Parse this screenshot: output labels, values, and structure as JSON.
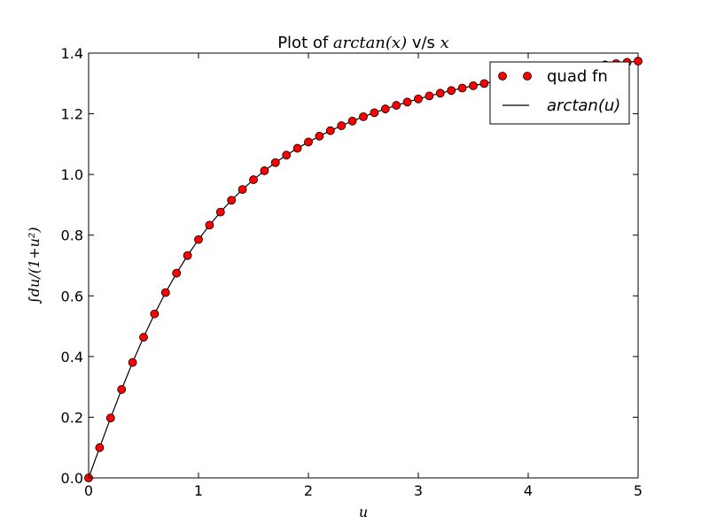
{
  "chart_data": {
    "type": "scatter",
    "title_prefix": "Plot of ",
    "title_math_1": "arctan(x)",
    "title_mid": " v/s ",
    "title_math_2": "x",
    "xlabel": "u",
    "ylabel": "∫du/(1+u²)",
    "xlim": [
      0,
      5
    ],
    "ylim": [
      0.0,
      1.4
    ],
    "x_ticks": [
      "0",
      "1",
      "2",
      "3",
      "4",
      "5"
    ],
    "y_ticks": [
      "0.0",
      "0.2",
      "0.4",
      "0.6",
      "0.8",
      "1.0",
      "1.2",
      "1.4"
    ],
    "grid": false,
    "legend_position": "top-right",
    "series": [
      {
        "name": "quad fn",
        "style": "markers",
        "color": "#ff0000",
        "edge_color": "#000000",
        "x": [
          0.0,
          0.1,
          0.2,
          0.3,
          0.4,
          0.5,
          0.6,
          0.7,
          0.8,
          0.9,
          1.0,
          1.1,
          1.2,
          1.3,
          1.4,
          1.5,
          1.6,
          1.7,
          1.8,
          1.9,
          2.0,
          2.1,
          2.2,
          2.3,
          2.4,
          2.5,
          2.6,
          2.7,
          2.8,
          2.9,
          3.0,
          3.1,
          3.2,
          3.3,
          3.4,
          3.5,
          3.6,
          3.7,
          3.8,
          3.9,
          4.0,
          4.1,
          4.2,
          4.3,
          4.4,
          4.5,
          4.6,
          4.7,
          4.8,
          4.9,
          5.0
        ],
        "y": [
          0.0,
          0.0997,
          0.1974,
          0.2915,
          0.3805,
          0.4636,
          0.5404,
          0.6107,
          0.6747,
          0.7328,
          0.7854,
          0.833,
          0.8761,
          0.9151,
          0.9505,
          0.9828,
          1.0122,
          1.0391,
          1.0637,
          1.0863,
          1.1071,
          1.1264,
          1.1442,
          1.1607,
          1.176,
          1.1903,
          1.2036,
          1.2161,
          1.2278,
          1.2387,
          1.249,
          1.2588,
          1.2679,
          1.2766,
          1.2847,
          1.2925,
          1.2998,
          1.3068,
          1.3134,
          1.3197,
          1.3258,
          1.3315,
          1.337,
          1.3423,
          1.3473,
          1.3521,
          1.3567,
          1.3612,
          1.3654,
          1.3695,
          1.3734
        ]
      },
      {
        "name": "arctan(u)",
        "style": "line",
        "color": "#000000",
        "x": [
          0.0,
          0.1,
          0.2,
          0.3,
          0.4,
          0.5,
          0.6,
          0.7,
          0.8,
          0.9,
          1.0,
          1.1,
          1.2,
          1.3,
          1.4,
          1.5,
          1.6,
          1.7,
          1.8,
          1.9,
          2.0,
          2.1,
          2.2,
          2.3,
          2.4,
          2.5,
          2.6,
          2.7,
          2.8,
          2.9,
          3.0,
          3.1,
          3.2,
          3.3,
          3.4,
          3.5,
          3.6,
          3.7,
          3.8,
          3.9,
          4.0,
          4.1,
          4.2,
          4.3,
          4.4,
          4.5,
          4.6,
          4.7,
          4.8,
          4.9,
          5.0
        ],
        "y": [
          0.0,
          0.0997,
          0.1974,
          0.2915,
          0.3805,
          0.4636,
          0.5404,
          0.6107,
          0.6747,
          0.7328,
          0.7854,
          0.833,
          0.8761,
          0.9151,
          0.9505,
          0.9828,
          1.0122,
          1.0391,
          1.0637,
          1.0863,
          1.1071,
          1.1264,
          1.1442,
          1.1607,
          1.176,
          1.1903,
          1.2036,
          1.2161,
          1.2278,
          1.2387,
          1.249,
          1.2588,
          1.2679,
          1.2766,
          1.2847,
          1.2925,
          1.2998,
          1.3068,
          1.3134,
          1.3197,
          1.3258,
          1.3315,
          1.337,
          1.3423,
          1.3473,
          1.3521,
          1.3567,
          1.3612,
          1.3654,
          1.3695,
          1.3734
        ]
      }
    ]
  }
}
